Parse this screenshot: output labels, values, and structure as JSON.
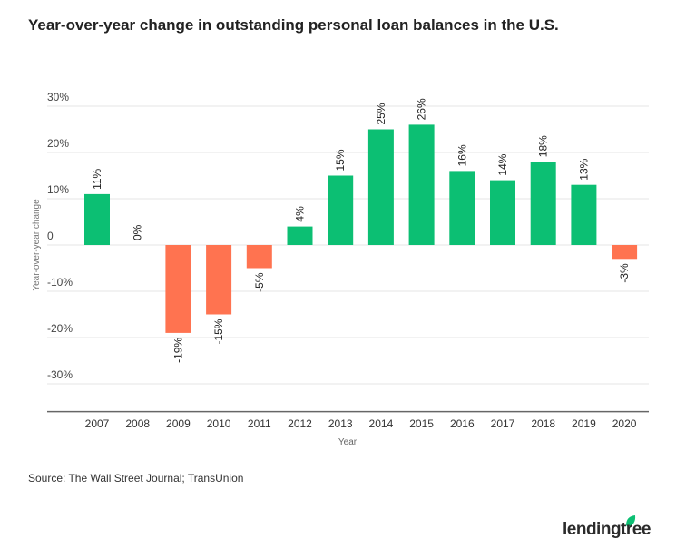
{
  "title": "Year-over-year change in outstanding personal loan balances in the U.S.",
  "source": "Source: The Wall Street Journal; TransUnion",
  "logo_text": "lendingtree",
  "colors": {
    "positive": "#0cbf73",
    "negative": "#ff7350",
    "grid": "#e6e6e6",
    "axis": "#666666"
  },
  "chart_data": {
    "type": "bar",
    "title": "Year-over-year change in outstanding personal loan balances in the U.S.",
    "xlabel": "Year",
    "ylabel": "Year-over-year change",
    "categories": [
      "2007",
      "2008",
      "2009",
      "2010",
      "2011",
      "2012",
      "2013",
      "2014",
      "2015",
      "2016",
      "2017",
      "2018",
      "2019",
      "2020"
    ],
    "values": [
      11,
      0,
      -19,
      -15,
      -5,
      4,
      15,
      25,
      26,
      16,
      14,
      18,
      13,
      -3
    ],
    "data_labels": [
      "11%",
      "0%",
      "-19%",
      "-15%",
      "-5%",
      "4%",
      "15%",
      "25%",
      "26%",
      "16%",
      "14%",
      "18%",
      "13%",
      "-3%"
    ],
    "yticks": [
      30,
      20,
      10,
      0,
      -10,
      -20,
      -30
    ],
    "ytick_labels": [
      "30%",
      "20%",
      "10%",
      "0",
      "-10%",
      "-20%",
      "-30%"
    ],
    "ylim": [
      -36,
      35
    ],
    "grid": true,
    "legend": "none"
  }
}
